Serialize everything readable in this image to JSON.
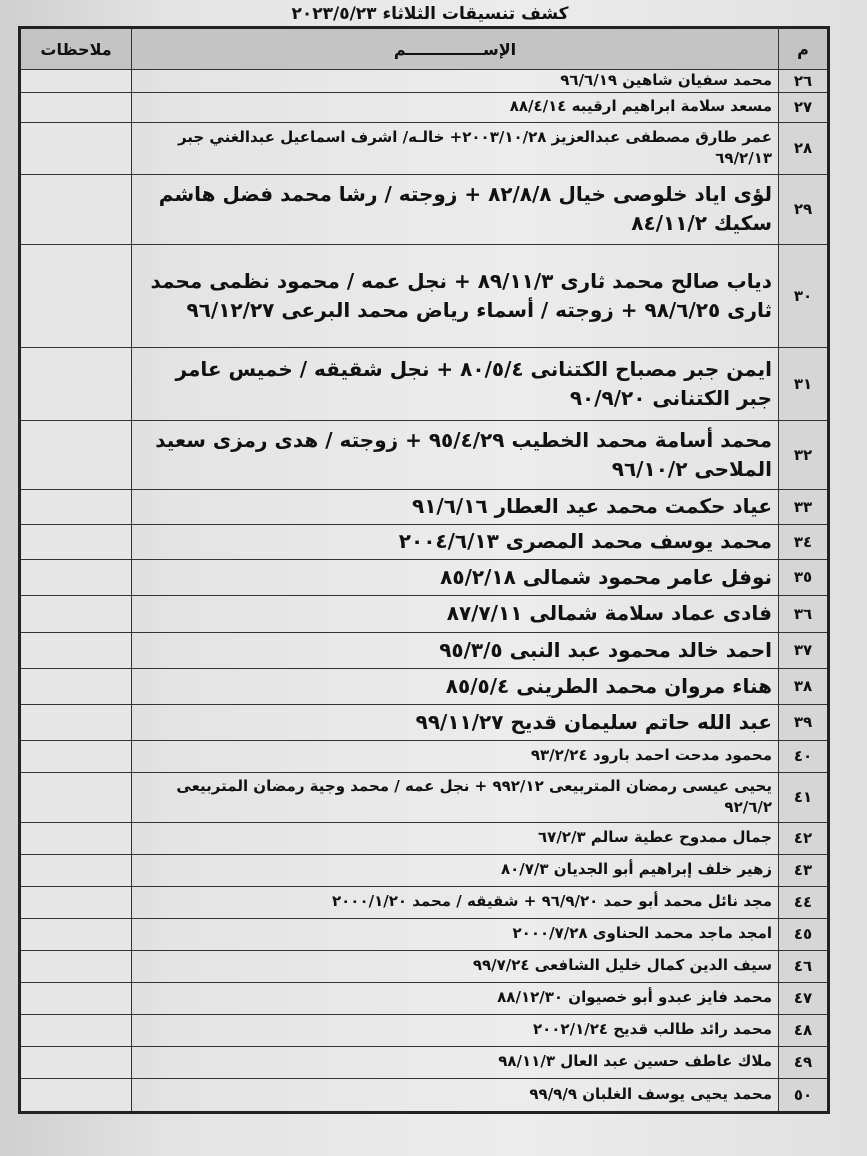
{
  "title": "كشف تنسيقات الثلاثاء ٢٠٢٣/٥/٢٣",
  "headers": {
    "num": "م",
    "name": "الإســــــــــــــم",
    "notes": "ملاحظات"
  },
  "rows": [
    {
      "num": "٢٦",
      "name": "محمد سفيان شاهين ٩٦/٦/١٩",
      "notes": ""
    },
    {
      "num": "٢٧",
      "name": "مسعد سلامة ابراهيم ارقيبه ٨٨/٤/١٤",
      "notes": ""
    },
    {
      "num": "٢٨",
      "name": "عمر طارق مصطفى عبدالعزيز ٢٠٠٣/١٠/٢٨+ خالـه/ اشرف اسماعيل عبدالغني جبر ٦٩/٢/١٣",
      "notes": ""
    },
    {
      "num": "٢٩",
      "name": "لؤى اياد خلوصى خيال ٨٢/٨/٨ + زوجته / رشا محمد فضل هاشم سكيك ٨٤/١١/٢",
      "notes": ""
    },
    {
      "num": "٣٠",
      "name": "دياب صالح محمد ثارى ٨٩/١١/٣ + نجل عمه / محمود نظمى محمد ثارى ٩٨/٦/٢٥ + زوجته / أسماء رياض محمد البرعى ٩٦/١٢/٢٧",
      "notes": ""
    },
    {
      "num": "٣١",
      "name": "ايمن جبر مصباح الكتنانى ٨٠/٥/٤ + نجل شقيقه / خميس عامر جبر الكتنانى ٩٠/٩/٢٠",
      "notes": ""
    },
    {
      "num": "٣٢",
      "name": "محمد أسامة محمد الخطيب ٩٥/٤/٢٩ + زوجته / هدى رمزى سعيد الملاحى ٩٦/١٠/٢",
      "notes": ""
    },
    {
      "num": "٣٣",
      "name": "عياد حكمت محمد عيد العطار ٩١/٦/١٦",
      "notes": ""
    },
    {
      "num": "٣٤",
      "name": "محمد يوسف محمد المصرى ٢٠٠٤/٦/١٣",
      "notes": ""
    },
    {
      "num": "٣٥",
      "name": "نوفل عامر محمود شمالى ٨٥/٢/١٨",
      "notes": ""
    },
    {
      "num": "٣٦",
      "name": "فادى عماد سلامة شمالى ٨٧/٧/١١",
      "notes": ""
    },
    {
      "num": "٣٧",
      "name": "احمد خالد محمود عبد النبى ٩٥/٣/٥",
      "notes": ""
    },
    {
      "num": "٣٨",
      "name": "هناء مروان محمد الطرينى ٨٥/٥/٤",
      "notes": ""
    },
    {
      "num": "٣٩",
      "name": "عبد الله حاتم سليمان قديح ٩٩/١١/٢٧",
      "notes": ""
    },
    {
      "num": "٤٠",
      "name": "محمود مدحت احمد بارود ٩٣/٢/٢٤",
      "notes": ""
    },
    {
      "num": "٤١",
      "name": "يحيى عيسى رمضان المتربيعى ٩٩٢/١٢ + نجل عمه / محمد وجية رمضان المتربيعى ٩٢/٦/٢",
      "notes": ""
    },
    {
      "num": "٤٢",
      "name": "جمال ممدوح عطية سالم ٦٧/٢/٣",
      "notes": ""
    },
    {
      "num": "٤٣",
      "name": "زهير خلف إبراهيم أبو الجديان ٨٠/٧/٣",
      "notes": ""
    },
    {
      "num": "٤٤",
      "name": "مجد نائل محمد أبو حمد ٩٦/٩/٢٠ + شقيقه / محمد ٢٠٠٠/١/٢٠",
      "notes": ""
    },
    {
      "num": "٤٥",
      "name": "امجد ماجد محمد الحناوى ٢٠٠٠/٧/٢٨",
      "notes": ""
    },
    {
      "num": "٤٦",
      "name": "سيف الدين كمال خليل الشافعى ٩٩/٧/٢٤",
      "notes": ""
    },
    {
      "num": "٤٧",
      "name": "محمد فايز عبدو أبو خصيوان ٨٨/١٢/٣٠",
      "notes": ""
    },
    {
      "num": "٤٨",
      "name": "محمد رائد طالب قديح ٢٠٠٢/١/٢٤",
      "notes": ""
    },
    {
      "num": "٤٩",
      "name": "ملاك عاطف حسين عبد العال ٩٨/١١/٣",
      "notes": ""
    },
    {
      "num": "٥٠",
      "name": "محمد يحيى يوسف الغلبان ٩٩/٩/٩",
      "notes": ""
    }
  ]
}
